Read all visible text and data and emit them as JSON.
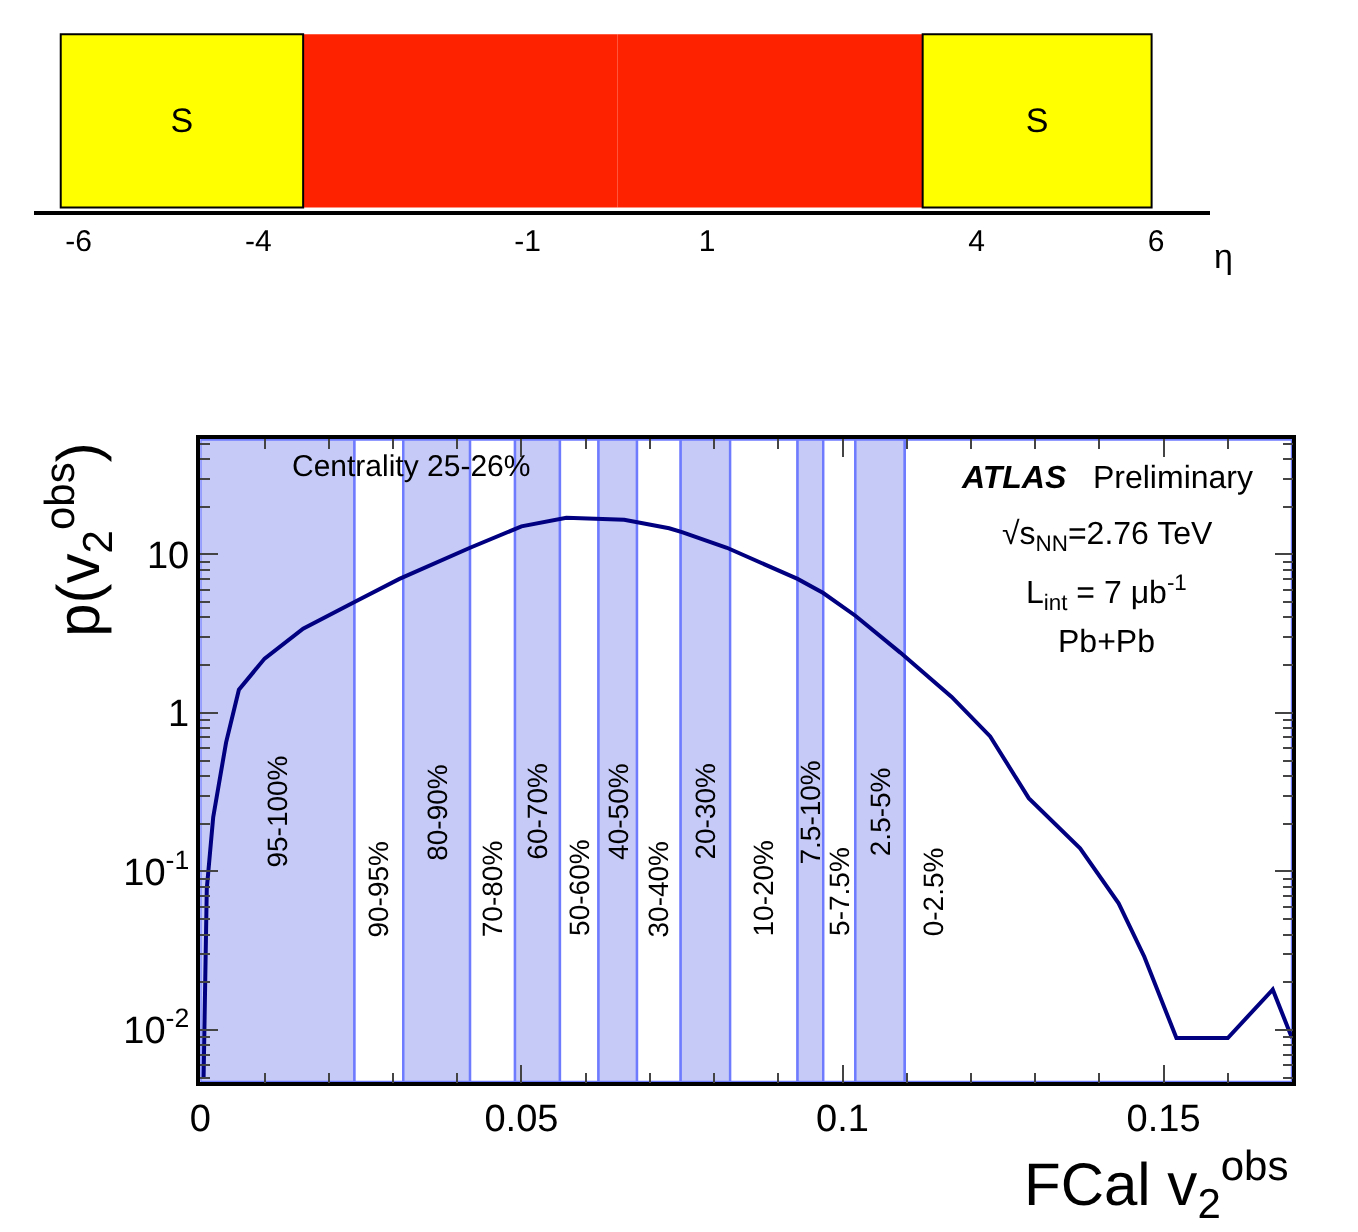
{
  "chart_data": [
    {
      "type": "bar",
      "orientation": "horizontal",
      "stacked": true,
      "categories": [
        null
      ],
      "series": [
        {
          "color": "#ff2200",
          "values": [
            -3.5
          ]
        },
        {
          "color": "#ff2200",
          "values": [
            3.4
          ]
        },
        {
          "name": "S",
          "color": "#ffff00",
          "values": [
            -2.7
          ]
        },
        {
          "name": "S",
          "color": "#ffff00",
          "values": [
            2.55
          ]
        }
      ],
      "xlim": [
        -6.5,
        6.6
      ],
      "xticks": [
        -6,
        -4,
        -1,
        1,
        4,
        6
      ],
      "xlabel": "η",
      "tick_labels": "x"
    },
    {
      "type": "line",
      "title": "Centrality 25-26%",
      "xlabel": "FCal v$_{2}$$^{obs}$",
      "ylabel": "p(v$_{2}$$^{obs}$)",
      "x": [
        0.0005,
        0.001,
        0.002,
        0.004,
        0.006,
        0.01,
        0.016,
        0.024,
        0.031,
        0.042,
        0.05,
        0.057,
        0.066,
        0.073,
        0.075,
        0.082,
        0.093,
        0.097,
        0.102,
        0.109,
        0.117,
        0.123,
        0.129,
        0.137,
        0.143,
        0.147,
        0.152,
        0.16,
        0.167,
        0.17
      ],
      "series": [
        {
          "color": "#000080",
          "values": [
            0.005,
            0.078,
            0.22,
            0.65,
            1.4,
            2.2,
            3.4,
            5.0,
            7.0,
            11,
            15,
            17,
            16.5,
            14.6,
            13.8,
            11,
            7.0,
            5.7,
            4.1,
            2.4,
            1.26,
            0.71,
            0.29,
            0.14,
            0.063,
            0.029,
            0.0089,
            0.0089,
            0.018,
            0.0089
          ]
        }
      ],
      "bands": [
        {
          "axis": "x",
          "from": 0,
          "to": 0.024,
          "label": "95-100%",
          "color": "#c5caf7"
        },
        {
          "axis": "x",
          "from": 0.024,
          "to": 0.0316,
          "label": "90-95%",
          "color": "#ffffff"
        },
        {
          "axis": "x",
          "from": 0.0316,
          "to": 0.042,
          "label": "80-90%",
          "color": "#c5caf7"
        },
        {
          "axis": "x",
          "from": 0.042,
          "to": 0.049,
          "label": "70-80%",
          "color": "#ffffff"
        },
        {
          "axis": "x",
          "from": 0.049,
          "to": 0.056,
          "label": "60-70%",
          "color": "#c5caf7"
        },
        {
          "axis": "x",
          "from": 0.056,
          "to": 0.062,
          "label": "50-60%",
          "color": "#ffffff"
        },
        {
          "axis": "x",
          "from": 0.062,
          "to": 0.068,
          "label": "40-50%",
          "color": "#c5caf7"
        },
        {
          "axis": "x",
          "from": 0.068,
          "to": 0.0748,
          "label": "30-40%",
          "color": "#ffffff"
        },
        {
          "axis": "x",
          "from": 0.0748,
          "to": 0.0825,
          "label": "20-30%",
          "color": "#c5caf7"
        },
        {
          "axis": "x",
          "from": 0.0825,
          "to": 0.093,
          "label": "10-20%",
          "color": "#ffffff"
        },
        {
          "axis": "x",
          "from": 0.093,
          "to": 0.097,
          "label": "7.5-10%",
          "color": "#c5caf7"
        },
        {
          "axis": "x",
          "from": 0.097,
          "to": 0.102,
          "label": "5-7.5%",
          "color": "#ffffff"
        },
        {
          "axis": "x",
          "from": 0.102,
          "to": 0.1097,
          "label": "2.5-5%",
          "color": "#c5caf7"
        },
        {
          "axis": "x",
          "from": 0.1097,
          "to": 0.17,
          "label": "0-2.5%",
          "color": "#ffffff"
        }
      ],
      "annotations": [
        "ATLAS Preliminary",
        "√s$_{NN}$=2.76 TeV",
        "L$_{int}$ = 7 μb$^{-1}$",
        "Pb+Pb"
      ],
      "log": "y",
      "xlim": [
        0,
        0.17
      ],
      "ylim": [
        0.0047,
        53
      ],
      "xticks": [
        0,
        0.05,
        0.1,
        0.15
      ],
      "yticks": [
        {
          "value": 0.01,
          "label": "10$^{-2}$"
        },
        {
          "value": 0.1,
          "label": "10$^{-1}$"
        },
        1,
        10
      ]
    }
  ]
}
